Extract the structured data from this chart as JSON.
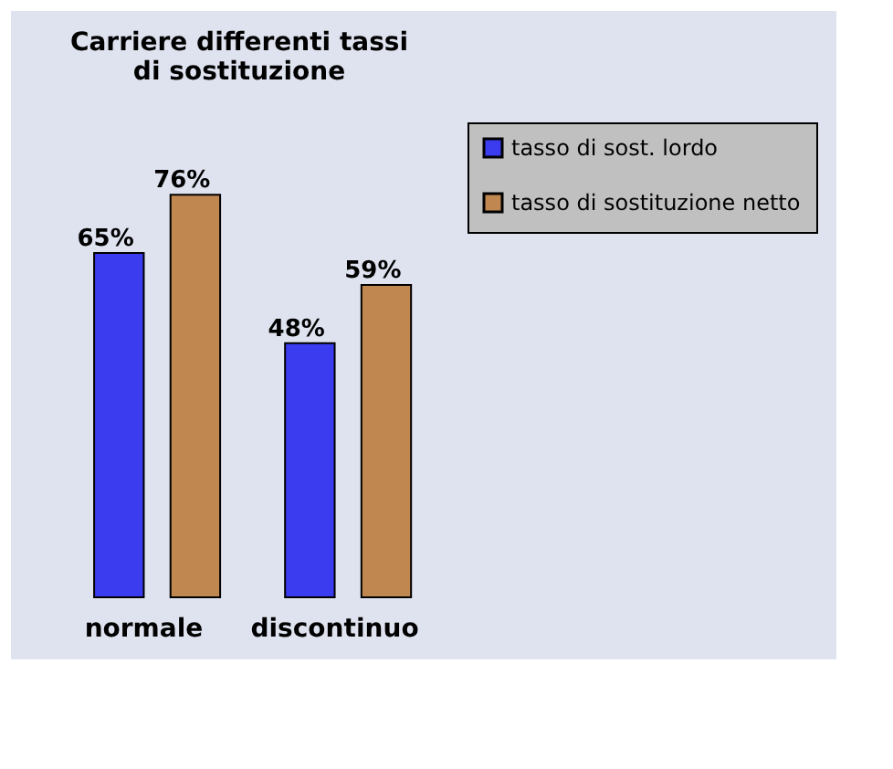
{
  "chart_data": {
    "type": "bar",
    "title": "Carriere differenti  tassi di sostituzione",
    "categories": [
      "normale",
      "discontinuo"
    ],
    "series": [
      {
        "name": "tasso di sost. lordo",
        "color": "#3b3bf0",
        "values": [
          65,
          48
        ],
        "value_labels": [
          "65%",
          "48%"
        ]
      },
      {
        "name": "tasso di sostituzione netto",
        "color": "#c08850",
        "values": [
          76,
          59
        ],
        "value_labels": [
          "76%",
          "59%"
        ]
      }
    ],
    "legend": "right"
  }
}
